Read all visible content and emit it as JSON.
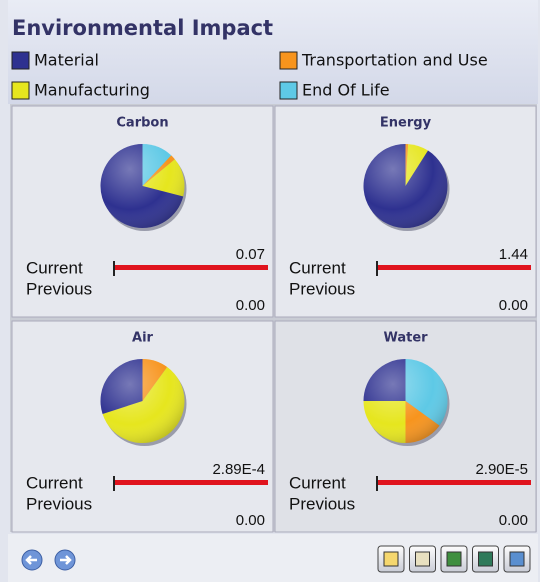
{
  "header": {
    "title": "Environmental Impact"
  },
  "legend": [
    {
      "label": "Material",
      "color": "#2e3190"
    },
    {
      "label": "Transportation and Use",
      "color": "#f7941d"
    },
    {
      "label": "Manufacturing",
      "color": "#e6e61e"
    },
    {
      "label": "End Of Life",
      "color": "#5ec9e6"
    }
  ],
  "panels": [
    {
      "title": "Carbon",
      "current_label": "Current",
      "previous_label": "Previous",
      "current_value": "0.07",
      "previous_value": "0.00",
      "shares": [
        71,
        2,
        15,
        12
      ]
    },
    {
      "title": "Energy",
      "current_label": "Current",
      "previous_label": "Previous",
      "current_value": "1.44",
      "previous_value": "0.00",
      "shares": [
        91,
        1,
        8,
        0
      ]
    },
    {
      "title": "Air",
      "current_label": "Current",
      "previous_label": "Previous",
      "current_value": "2.89E-4",
      "previous_value": "0.00",
      "shares": [
        30,
        10,
        60,
        0
      ]
    },
    {
      "title": "Water",
      "current_label": "Current",
      "previous_label": "Previous",
      "current_value": "2.90E-5",
      "previous_value": "0.00",
      "shares": [
        25,
        15,
        25,
        35
      ]
    }
  ]
}
